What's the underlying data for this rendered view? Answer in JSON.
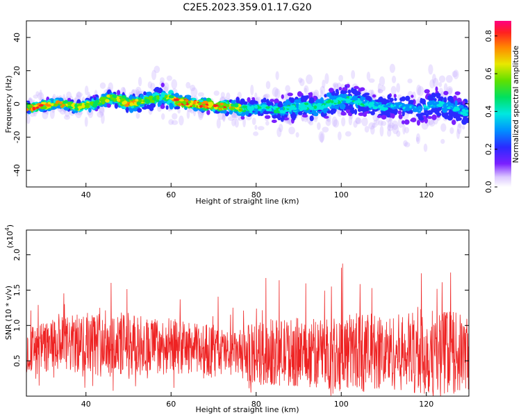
{
  "title": "C2E5.2023.359.01.17.G20",
  "colors": {
    "snr_line": "#ee2222",
    "axis": "#000000",
    "background": "#ffffff"
  },
  "chart_data": [
    {
      "type": "heatmap",
      "panel": "top",
      "xlabel": "Height of straight line (km)",
      "ylabel": "Frequency (Hz)",
      "xlim": [
        26,
        130
      ],
      "ylim": [
        -50,
        50
      ],
      "x_ticks": [
        40,
        60,
        80,
        100,
        120
      ],
      "y_ticks": [
        -40,
        -20,
        0,
        20,
        40
      ],
      "colorbar": {
        "label": "Normalized spectral amplitude",
        "range": [
          0.0,
          0.88
        ],
        "ticks": [
          0.0,
          0.2,
          0.4,
          0.6,
          0.8
        ],
        "colormap": "rainbow"
      },
      "center_frequency_track": {
        "x": [
          27,
          30,
          34,
          38,
          42,
          46,
          50,
          54,
          58,
          60,
          62,
          66,
          70,
          74,
          78,
          82,
          86,
          90,
          94,
          98,
          102,
          106,
          110,
          114,
          118,
          122,
          126,
          130
        ],
        "y": [
          -2,
          -1,
          0,
          -2,
          0,
          4,
          0,
          2,
          4,
          3,
          1,
          0,
          -1,
          -2,
          -3,
          -2,
          -4,
          -1,
          -2,
          1,
          3,
          0,
          -2,
          -1,
          -4,
          0,
          -2,
          -6
        ],
        "spread_hz": [
          4,
          4,
          4,
          5,
          5,
          6,
          6,
          7,
          9,
          8,
          6,
          5,
          5,
          6,
          7,
          9,
          10,
          10,
          10,
          11,
          12,
          10,
          10,
          11,
          12,
          13,
          12,
          12
        ],
        "peak_amplitude": [
          0.85,
          0.78,
          0.72,
          0.6,
          0.62,
          0.6,
          0.82,
          0.5,
          0.55,
          0.62,
          0.86,
          0.86,
          0.82,
          0.75,
          0.45,
          0.35,
          0.38,
          0.4,
          0.4,
          0.42,
          0.38,
          0.35,
          0.32,
          0.3,
          0.3,
          0.32,
          0.35,
          0.3
        ]
      }
    },
    {
      "type": "line",
      "panel": "bottom",
      "xlabel": "Height of straight line (km)",
      "ylabel": "SNR (10 * v/v)",
      "y_multiplier": "(x10^4)",
      "xlim": [
        26,
        130
      ],
      "ylim": [
        0,
        2.35
      ],
      "x_ticks": [
        40,
        60,
        80,
        100,
        120
      ],
      "y_ticks": [
        0.5,
        1.0,
        1.5,
        2.0
      ],
      "envelope": {
        "x": [
          26,
          30,
          35,
          40,
          45,
          50,
          55,
          60,
          65,
          70,
          75,
          80,
          85,
          90,
          95,
          100,
          105,
          110,
          115,
          120,
          125,
          130
        ],
        "mean": [
          0.65,
          0.7,
          0.72,
          0.75,
          0.75,
          0.72,
          0.72,
          0.7,
          0.68,
          0.65,
          0.6,
          0.6,
          0.62,
          0.62,
          0.6,
          0.62,
          0.62,
          0.62,
          0.62,
          0.62,
          0.62,
          0.6
        ],
        "peak": [
          1.3,
          1.35,
          1.55,
          1.65,
          1.85,
          1.7,
          1.55,
          1.6,
          1.4,
          1.55,
          1.3,
          1.7,
          1.7,
          1.8,
          1.8,
          2.0,
          2.05,
          1.9,
          2.0,
          2.35,
          2.2,
          1.9
        ],
        "trough": [
          0.15,
          0.05,
          0.05,
          0.08,
          0.05,
          0.06,
          0.1,
          0.1,
          0.12,
          0.18,
          0.2,
          0.0,
          0.0,
          0.0,
          0.0,
          0.0,
          0.0,
          0.0,
          0.0,
          0.0,
          0.0,
          0.0
        ]
      }
    }
  ]
}
